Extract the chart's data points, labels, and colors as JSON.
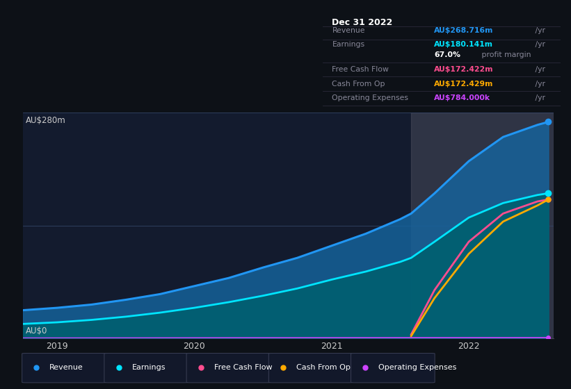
{
  "background_color": "#0d1117",
  "plot_bg_color": "#131b2e",
  "title_box": {
    "date": "Dec 31 2022",
    "rows": [
      {
        "label": "Revenue",
        "value": "AU$268.716m",
        "unit": " /yr",
        "color": "#2196f3"
      },
      {
        "label": "Earnings",
        "value": "AU$180.141m",
        "unit": " /yr",
        "color": "#00e5ff"
      },
      {
        "label": "",
        "value": "67.0%",
        "unit": " profit margin",
        "color": "#ffffff"
      },
      {
        "label": "Free Cash Flow",
        "value": "AU$172.422m",
        "unit": " /yr",
        "color": "#ff4d8f"
      },
      {
        "label": "Cash From Op",
        "value": "AU$172.429m",
        "unit": " /yr",
        "color": "#ffaa00"
      },
      {
        "label": "Operating Expenses",
        "value": "AU$784.000k",
        "unit": " /yr",
        "color": "#cc44ff"
      }
    ]
  },
  "yaxis_label_top": "AU$280m",
  "yaxis_label_bottom": "AU$0",
  "ylim": [
    0,
    280
  ],
  "xlim_start": 2018.75,
  "xlim_end": 2022.62,
  "forecast_start": 2021.58,
  "xticks": [
    2019,
    2020,
    2021,
    2022
  ],
  "series": {
    "Revenue": {
      "color": "#2196f3",
      "x": [
        2018.75,
        2019.0,
        2019.25,
        2019.5,
        2019.75,
        2020.0,
        2020.25,
        2020.5,
        2020.75,
        2021.0,
        2021.25,
        2021.5,
        2021.58,
        2021.75,
        2022.0,
        2022.25,
        2022.5,
        2022.58
      ],
      "y": [
        35,
        38,
        42,
        48,
        55,
        65,
        75,
        88,
        100,
        115,
        130,
        148,
        155,
        180,
        220,
        250,
        265,
        268.716
      ]
    },
    "Earnings": {
      "color": "#00e5ff",
      "x": [
        2018.75,
        2019.0,
        2019.25,
        2019.5,
        2019.75,
        2020.0,
        2020.25,
        2020.5,
        2020.75,
        2021.0,
        2021.25,
        2021.5,
        2021.58,
        2021.75,
        2022.0,
        2022.25,
        2022.5,
        2022.58
      ],
      "y": [
        18,
        20,
        23,
        27,
        32,
        38,
        45,
        53,
        62,
        73,
        83,
        95,
        100,
        120,
        150,
        168,
        178,
        180.141
      ]
    },
    "FreeCashFlow": {
      "color": "#ff4d8f",
      "x": [
        2021.58,
        2021.75,
        2022.0,
        2022.25,
        2022.5,
        2022.58
      ],
      "y": [
        5,
        60,
        120,
        155,
        170,
        172.422
      ]
    },
    "CashFromOp": {
      "color": "#ffaa00",
      "x": [
        2021.58,
        2021.75,
        2022.0,
        2022.25,
        2022.5,
        2022.58
      ],
      "y": [
        3,
        50,
        105,
        145,
        165,
        172.429
      ]
    },
    "OperatingExpenses": {
      "color": "#cc44ff",
      "x": [
        2018.75,
        2019.0,
        2019.25,
        2019.5,
        2019.75,
        2020.0,
        2020.25,
        2020.5,
        2020.75,
        2021.0,
        2021.25,
        2021.5,
        2021.58,
        2021.75,
        2022.0,
        2022.25,
        2022.5,
        2022.58
      ],
      "y": [
        0.3,
        0.35,
        0.4,
        0.45,
        0.5,
        0.55,
        0.6,
        0.62,
        0.65,
        0.68,
        0.7,
        0.72,
        0.73,
        0.74,
        0.75,
        0.76,
        0.77,
        0.784
      ]
    }
  },
  "legend": [
    {
      "label": "Revenue",
      "color": "#2196f3"
    },
    {
      "label": "Earnings",
      "color": "#00e5ff"
    },
    {
      "label": "Free Cash Flow",
      "color": "#ff4d8f"
    },
    {
      "label": "Cash From Op",
      "color": "#ffaa00"
    },
    {
      "label": "Operating Expenses",
      "color": "#cc44ff"
    }
  ]
}
